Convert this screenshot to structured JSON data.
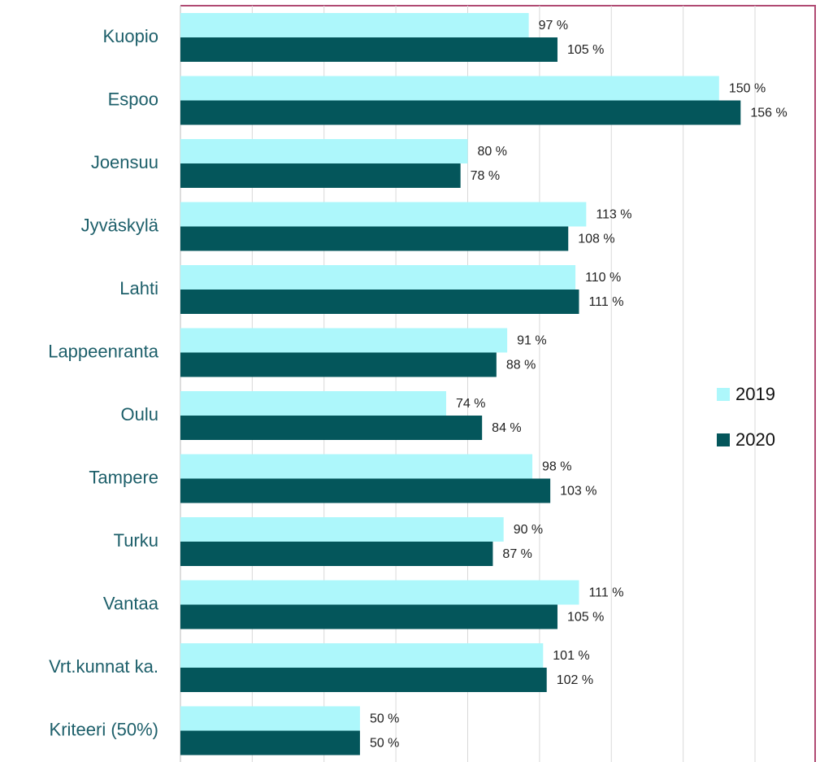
{
  "chart_data": {
    "type": "barh",
    "categories": [
      "Kuopio",
      "Espoo",
      "Joensuu",
      "Jyväskylä",
      "Lahti",
      "Lappeenranta",
      "Oulu",
      "Tampere",
      "Turku",
      "Vantaa",
      "Vrt.kunnat ka.",
      "Kriteeri (50%)"
    ],
    "series": [
      {
        "name": "2019",
        "color": "#adf7fb",
        "values": [
          97,
          150,
          80,
          113,
          110,
          91,
          74,
          98,
          90,
          111,
          101,
          50
        ],
        "value_labels": [
          "97 %",
          "150 %",
          "80 %",
          "113 %",
          "110 %",
          "91 %",
          "74 %",
          "98 %",
          "90 %",
          "111 %",
          "101 %",
          "50 %"
        ]
      },
      {
        "name": "2020",
        "color": "#04565b",
        "values": [
          105,
          156,
          78,
          108,
          111,
          88,
          84,
          103,
          87,
          105,
          102,
          50
        ],
        "value_labels": [
          "105 %",
          "156 %",
          "78 %",
          "108 %",
          "111 %",
          "88 %",
          "84 %",
          "103 %",
          "87 %",
          "105 %",
          "102 %",
          "50 %"
        ]
      }
    ],
    "xlim": [
      0,
      160
    ],
    "xticks": [
      0,
      20,
      40,
      60,
      80,
      100,
      120,
      140,
      160
    ],
    "grid": true,
    "legend": "right"
  }
}
